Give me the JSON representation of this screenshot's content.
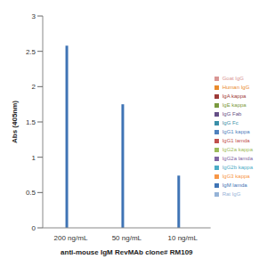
{
  "chart_data": {
    "type": "bar",
    "x_label": "anti-mouse IgM RevMAb clone# RM109",
    "y_label": "Abs (405nm)",
    "categories": [
      "200 ng/mL",
      "50 ng/mL",
      "10 ng/mL"
    ],
    "series": [
      {
        "name": "IgG1 kappa",
        "color": "#4f81bd",
        "values": [
          0,
          0,
          0
        ]
      },
      {
        "name": "IgG1 lamda",
        "color": "#c0504d",
        "values": [
          0,
          0,
          0
        ]
      },
      {
        "name": "IgG2a kappa",
        "color": "#9bbb59",
        "values": [
          0,
          0,
          0
        ]
      },
      {
        "name": "IgG2a lamda",
        "color": "#8064a2",
        "values": [
          0,
          0,
          0
        ]
      },
      {
        "name": "IgG2b kappa",
        "color": "#4bacc6",
        "values": [
          0,
          0,
          0
        ]
      },
      {
        "name": "IgG3 kappa",
        "color": "#f79646",
        "values": [
          0,
          0,
          0
        ]
      },
      {
        "name": "IgM lamda",
        "color": "#3f74b5",
        "values": [
          2.58,
          1.75,
          0.74
        ]
      },
      {
        "name": "IgA kappa",
        "color": "#9e3b38",
        "values": [
          0,
          0,
          0
        ]
      },
      {
        "name": "IgE kappa",
        "color": "#7a9a3e",
        "values": [
          0,
          0,
          0
        ]
      },
      {
        "name": "IgG Fab",
        "color": "#654f86",
        "values": [
          0,
          0,
          0
        ]
      },
      {
        "name": "IgG Fc",
        "color": "#3a8fa8",
        "values": [
          0,
          0,
          0
        ]
      },
      {
        "name": "Human IgG",
        "color": "#e98a2c",
        "values": [
          0,
          0,
          0
        ]
      },
      {
        "name": "Rat IgG",
        "color": "#95b3d7",
        "values": [
          0,
          0,
          0
        ]
      },
      {
        "name": "Goat IgG",
        "color": "#d99694",
        "values": [
          0,
          0,
          0
        ]
      }
    ],
    "ylim": [
      0,
      3
    ],
    "yticks": [
      0,
      0.5,
      1,
      1.5,
      2,
      2.5,
      3
    ],
    "grid": false,
    "legend": "right"
  }
}
